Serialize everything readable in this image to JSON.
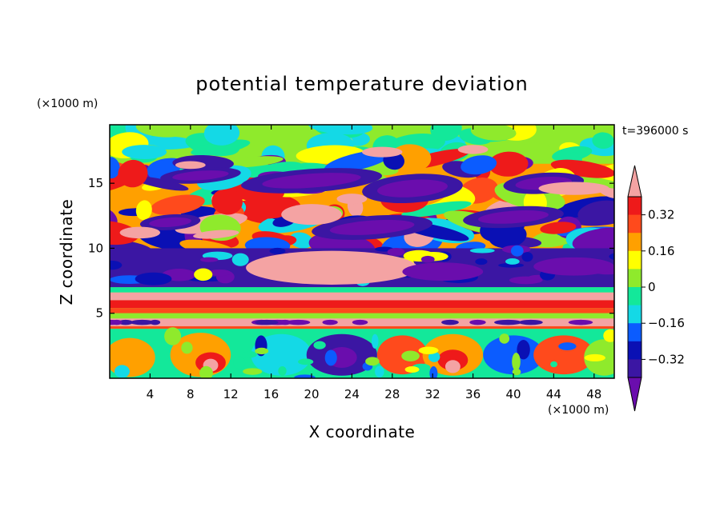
{
  "chart_data": {
    "type": "heatmap",
    "title": "potential temperature deviation",
    "xlabel": "X coordinate",
    "ylabel": "Z coordinate",
    "x_unit": "(×1000 m)",
    "y_unit": "(×1000 m)",
    "time_label": "t=396000 s",
    "xlim": [
      0,
      50
    ],
    "ylim": [
      0,
      19.5
    ],
    "x_ticks": [
      4,
      8,
      12,
      16,
      20,
      24,
      28,
      32,
      36,
      40,
      44,
      48
    ],
    "y_ticks": [
      5,
      10,
      15
    ],
    "colorbar": {
      "tick_values": [
        0.32,
        0.16,
        0,
        -0.16,
        -0.32
      ],
      "tick_labels": [
        "0.32",
        "0.16",
        "0",
        "−0.16",
        "−0.32"
      ],
      "levels": [
        -0.4,
        -0.32,
        -0.24,
        -0.16,
        -0.08,
        0,
        0.08,
        0.16,
        0.24,
        0.32,
        0.4
      ],
      "colors": [
        "#6a0dad",
        "#3b16a3",
        "#0a10b4",
        "#0b5cff",
        "#14d9e6",
        "#13e89a",
        "#8fea2c",
        "#ffff00",
        "#ffa000",
        "#ff4a1c",
        "#ee1a1a",
        "#f4a3a3"
      ],
      "extend": "both"
    },
    "approx_features": [
      {
        "x": [
          0,
          50
        ],
        "z": [
          4.0,
          4.6
        ],
        "value": 0.42,
        "desc": "warm band"
      },
      {
        "x": [
          0,
          50
        ],
        "z": [
          4.6,
          5.4
        ],
        "value": 0.05
      },
      {
        "x": [
          0,
          50
        ],
        "z": [
          6.0,
          6.6
        ],
        "value": 0.3
      },
      {
        "x": [
          13,
          28
        ],
        "z": [
          7,
          9.5
        ],
        "value": 0.42
      },
      {
        "x": [
          0,
          50
        ],
        "z": [
          8,
          10
        ],
        "value": -0.35
      },
      {
        "x": [
          0,
          50
        ],
        "z": [
          13,
          16.5
        ],
        "value": -0.35
      },
      {
        "x": [
          0,
          50
        ],
        "z": [
          0,
          3.8
        ],
        "value": 0.2
      }
    ]
  }
}
